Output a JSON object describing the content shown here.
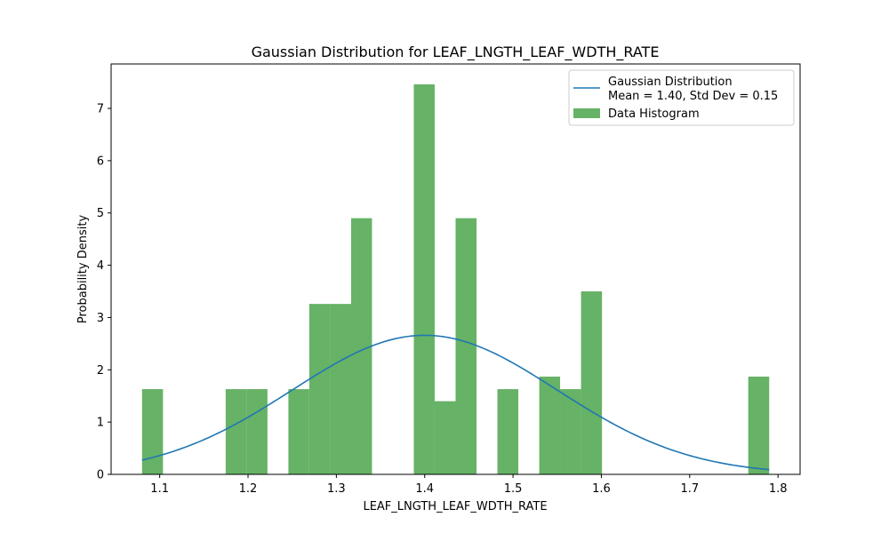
{
  "chart_data": {
    "type": "bar",
    "title": "Gaussian Distribution for LEAF_LNGTH_LEAF_WDTH_RATE",
    "xlabel": "LEAF_LNGTH_LEAF_WDTH_RATE",
    "ylabel": "Probability Density",
    "xlim": [
      1.045,
      1.825
    ],
    "ylim": [
      0,
      7.85
    ],
    "xticks": [
      1.1,
      1.2,
      1.3,
      1.4,
      1.5,
      1.6,
      1.7,
      1.8
    ],
    "xtick_labels": [
      "1.1",
      "1.2",
      "1.3",
      "1.4",
      "1.5",
      "1.6",
      "1.7",
      "1.8"
    ],
    "yticks": [
      0,
      1,
      2,
      3,
      4,
      5,
      6,
      7
    ],
    "ytick_labels": [
      "0",
      "1",
      "2",
      "3",
      "4",
      "5",
      "6",
      "7"
    ],
    "grid": false,
    "legend_position": "top-right",
    "histogram": {
      "name": "Data Histogram",
      "color": "#66b266",
      "bin_edges": [
        1.08,
        1.1037,
        1.1273,
        1.151,
        1.1747,
        1.1983,
        1.222,
        1.2457,
        1.2693,
        1.293,
        1.3167,
        1.3403,
        1.364,
        1.3877,
        1.4113,
        1.435,
        1.4587,
        1.4823,
        1.506,
        1.5297,
        1.5533,
        1.577,
        1.6007,
        1.6243,
        1.648,
        1.6717,
        1.6953,
        1.719,
        1.7427,
        1.7663,
        1.79
      ],
      "values": [
        1.63,
        0,
        0,
        0,
        1.63,
        1.63,
        0,
        1.63,
        3.26,
        3.26,
        4.9,
        0,
        0,
        7.46,
        1.4,
        4.9,
        0,
        1.63,
        0,
        1.87,
        1.63,
        3.5,
        0,
        0,
        0,
        0,
        0,
        0,
        0,
        1.87
      ]
    },
    "series": [
      {
        "name": "Gaussian Distribution",
        "legend_line2": "Mean = 1.40, Std Dev = 0.15",
        "type": "line",
        "color": "#1f77b4",
        "mean": 1.4,
        "std": 0.15,
        "x_range": [
          1.08,
          1.79
        ]
      }
    ]
  }
}
